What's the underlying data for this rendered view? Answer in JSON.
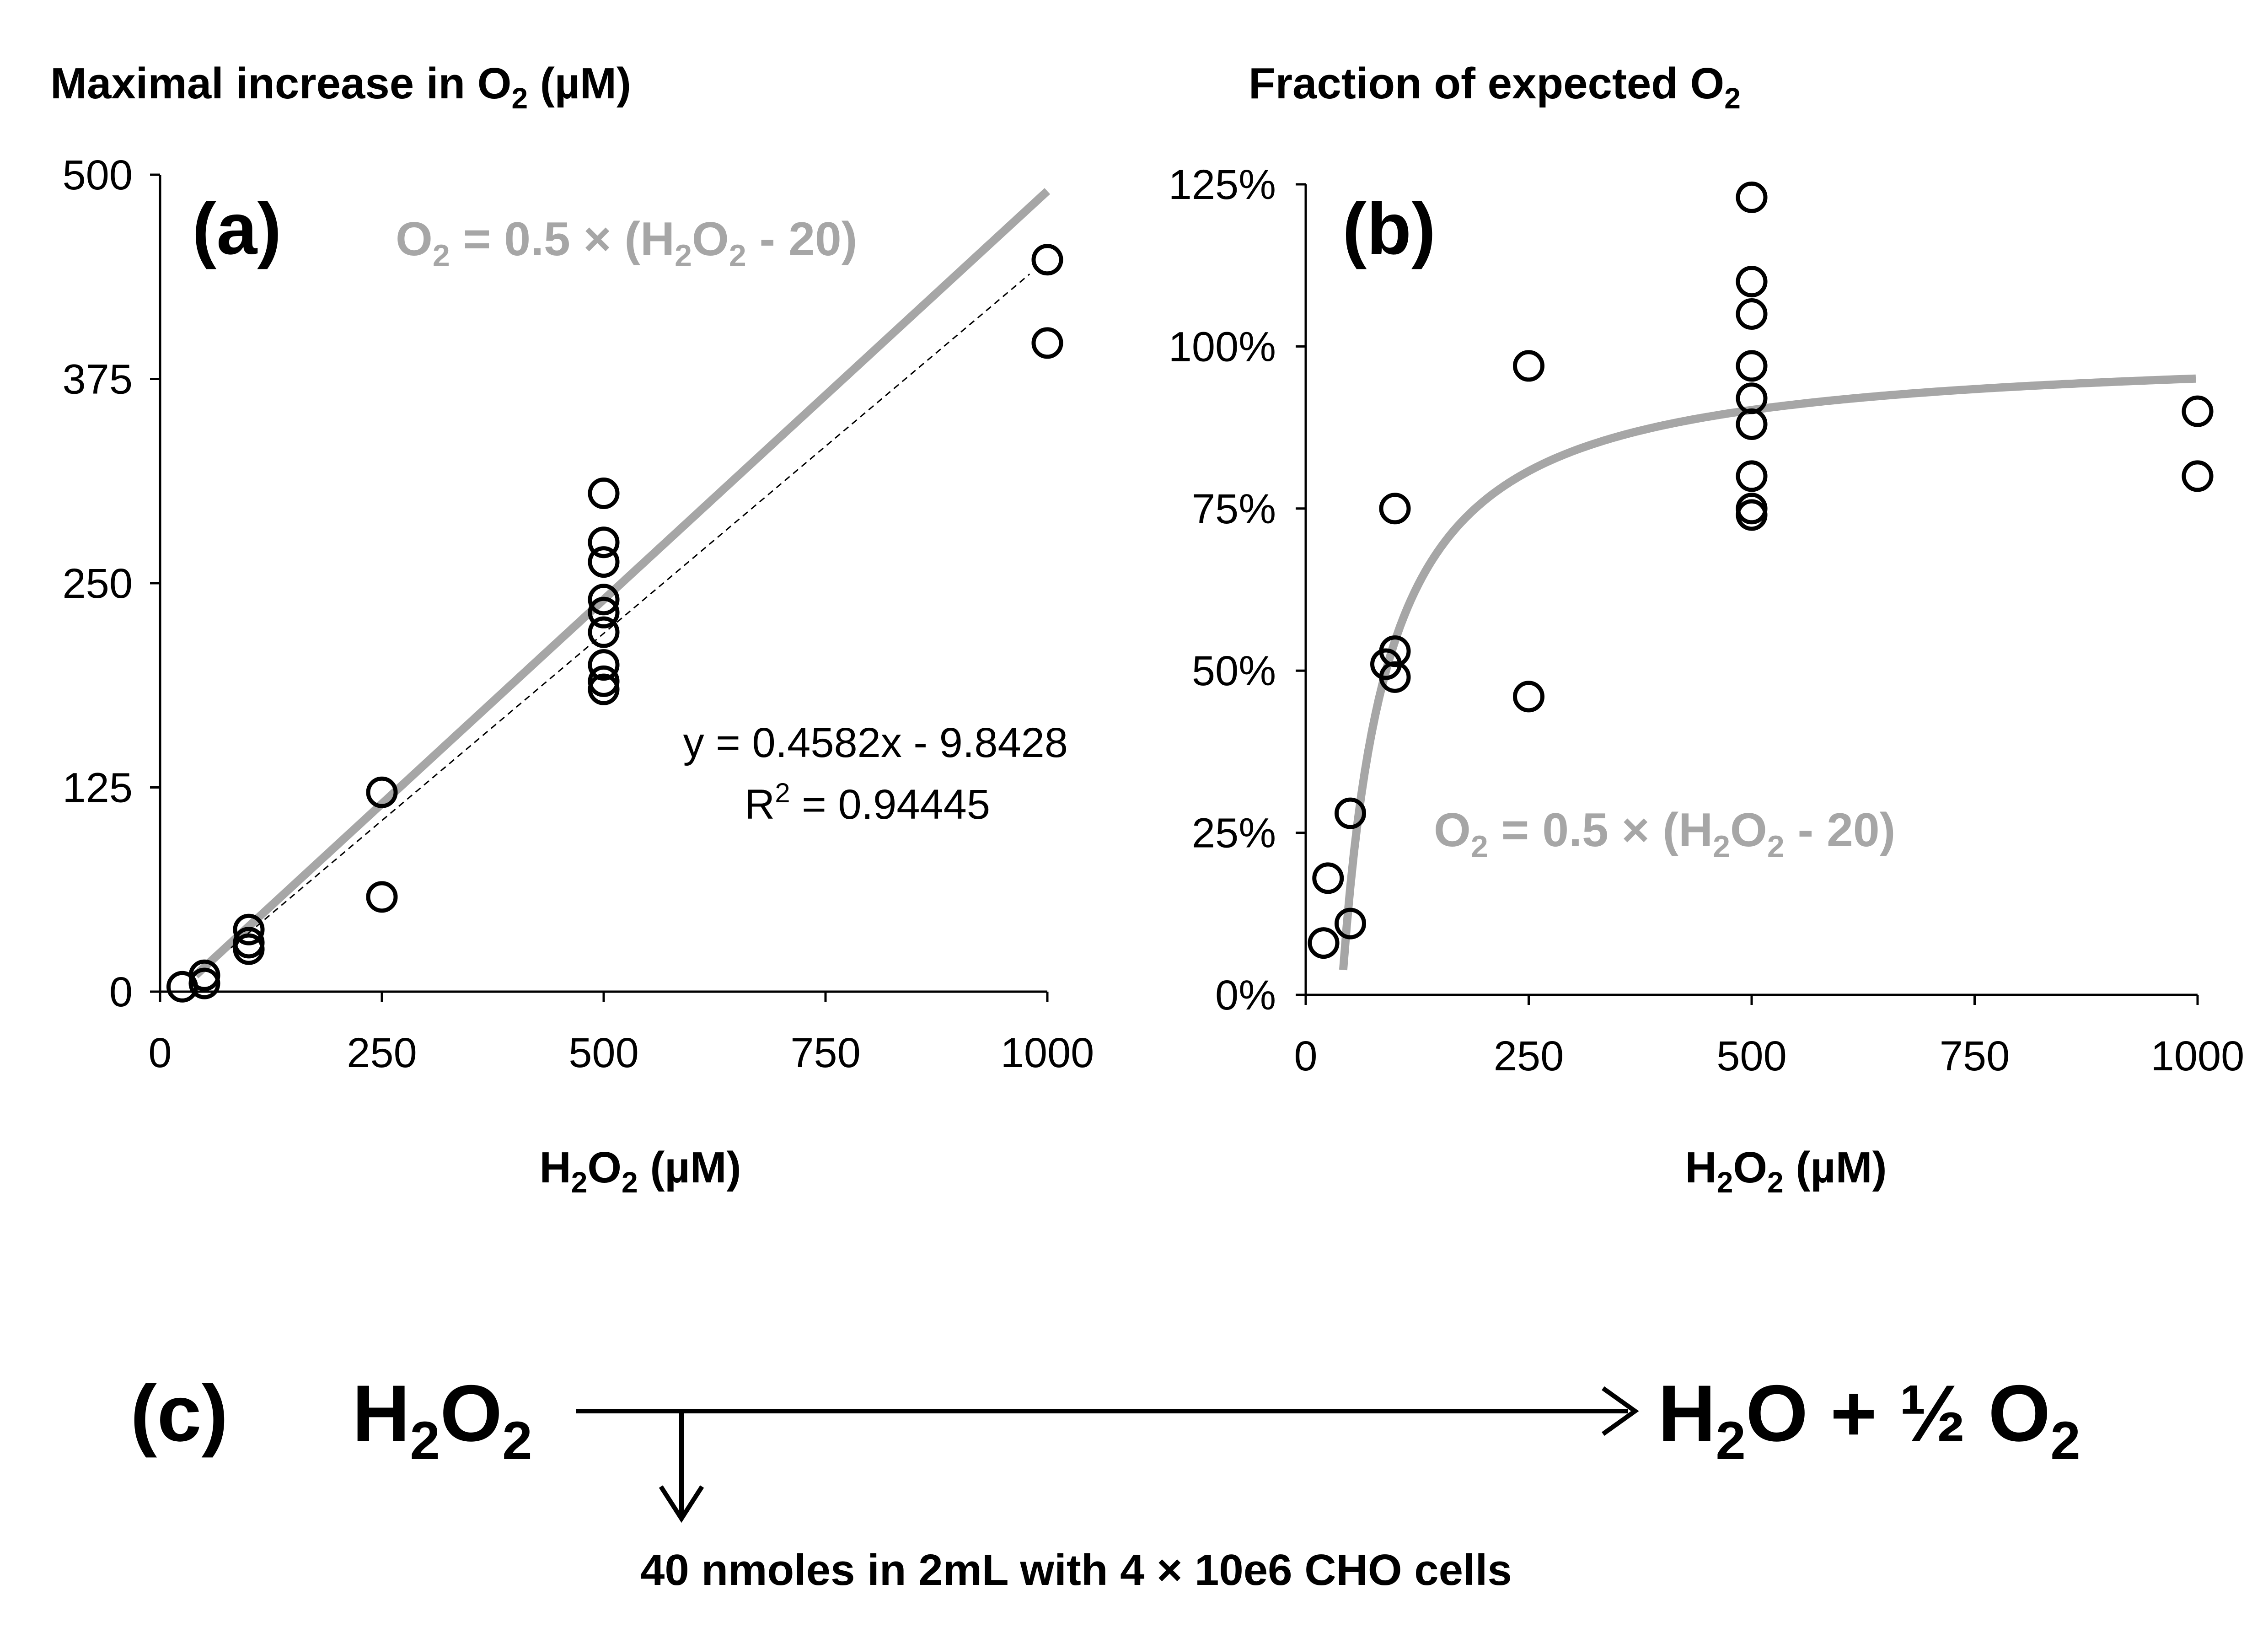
{
  "chart_data": [
    {
      "type": "scatter",
      "panel_label": "(a)",
      "title": "Maximal increase in O2 (µM)",
      "title_parts": {
        "pre": "Maximal increase in O",
        "sub": "2",
        "post": " (µM)"
      },
      "xlabel": "H2O2 (µM)",
      "xlabel_parts": {
        "a": "H",
        "s1": "2",
        "b": "O",
        "s2": "2",
        "c": " (µM)"
      },
      "ylabel": "",
      "xlim": [
        0,
        1000
      ],
      "ylim": [
        0,
        500
      ],
      "x_ticks": [
        0,
        250,
        500,
        750,
        1000
      ],
      "y_ticks": [
        0,
        125,
        250,
        375,
        500
      ],
      "grid": false,
      "series": [
        {
          "values": [
            {
              "x": 25,
              "y": 3
            },
            {
              "x": 50,
              "y": 5
            },
            {
              "x": 50,
              "y": 10
            },
            {
              "x": 100,
              "y": 26
            },
            {
              "x": 100,
              "y": 30
            },
            {
              "x": 100,
              "y": 38
            },
            {
              "x": 250,
              "y": 58
            },
            {
              "x": 250,
              "y": 122
            },
            {
              "x": 500,
              "y": 185
            },
            {
              "x": 500,
              "y": 190
            },
            {
              "x": 500,
              "y": 200
            },
            {
              "x": 500,
              "y": 220
            },
            {
              "x": 500,
              "y": 232
            },
            {
              "x": 500,
              "y": 240
            },
            {
              "x": 500,
              "y": 263
            },
            {
              "x": 500,
              "y": 275
            },
            {
              "x": 500,
              "y": 305
            },
            {
              "x": 1000,
              "y": 397
            },
            {
              "x": 1000,
              "y": 448
            }
          ]
        }
      ],
      "model_curve": {
        "formula": "O2 = 0.5 × (H2O2 - 20)",
        "slope": 0.5,
        "offset": 20,
        "color": "#a6a6a6"
      },
      "trendline": {
        "slope": 0.4582,
        "intercept": -9.8428,
        "equation": "y = 0.4582x - 9.8428",
        "r2_label": "R",
        "r2_value": " = 0.94445"
      },
      "annotation": {
        "a": "O",
        "s1": "2",
        "b": " = 0.5 × (H",
        "s2": "2",
        "c": "O",
        "s3": "2",
        "d": " - 20)"
      }
    },
    {
      "type": "scatter",
      "panel_label": "(b)",
      "title": "Fraction of expected O2",
      "title_parts": {
        "pre": "Fraction of expected O",
        "sub": "2",
        "post": ""
      },
      "xlabel": "H2O2 (µM)",
      "xlabel_parts": {
        "a": "H",
        "s1": "2",
        "b": "O",
        "s2": "2",
        "c": " (µM)"
      },
      "ylabel": "",
      "xlim": [
        0,
        1000
      ],
      "ylim": [
        0,
        1.25
      ],
      "x_ticks": [
        0,
        250,
        500,
        750,
        1000
      ],
      "y_ticks": [
        "0%",
        "25%",
        "50%",
        "75%",
        "100%",
        "125%"
      ],
      "grid": false,
      "series": [
        {
          "values": [
            {
              "x": 20,
              "y": 0.08
            },
            {
              "x": 25,
              "y": 0.18
            },
            {
              "x": 50,
              "y": 0.11
            },
            {
              "x": 50,
              "y": 0.28
            },
            {
              "x": 90,
              "y": 0.51
            },
            {
              "x": 100,
              "y": 0.49
            },
            {
              "x": 100,
              "y": 0.53
            },
            {
              "x": 100,
              "y": 0.75
            },
            {
              "x": 250,
              "y": 0.46
            },
            {
              "x": 250,
              "y": 0.97
            },
            {
              "x": 500,
              "y": 0.74
            },
            {
              "x": 500,
              "y": 0.75
            },
            {
              "x": 500,
              "y": 0.8
            },
            {
              "x": 500,
              "y": 0.88
            },
            {
              "x": 500,
              "y": 0.92
            },
            {
              "x": 500,
              "y": 0.97
            },
            {
              "x": 500,
              "y": 1.05
            },
            {
              "x": 500,
              "y": 1.1
            },
            {
              "x": 500,
              "y": 1.23
            },
            {
              "x": 1000,
              "y": 0.8
            },
            {
              "x": 1000,
              "y": 0.9
            }
          ]
        }
      ],
      "model_curve": {
        "formula": "O2 = 0.5 × (H2O2 - 20)",
        "color": "#a6a6a6"
      },
      "annotation": {
        "a": "O",
        "s1": "2",
        "b": " = 0.5 × (H",
        "s2": "2",
        "c": "O",
        "s3": "2",
        "d": " - 20)"
      }
    }
  ],
  "reaction": {
    "label": "(c)",
    "reactant": {
      "a": "H",
      "s1": "2",
      "b": "O",
      "s2": "2"
    },
    "product": {
      "a": "H",
      "s1": "2",
      "b": "O + ½ O",
      "s2": "2"
    },
    "note": "40 nmoles in 2mL with  4 × 10e6 CHO cells"
  }
}
